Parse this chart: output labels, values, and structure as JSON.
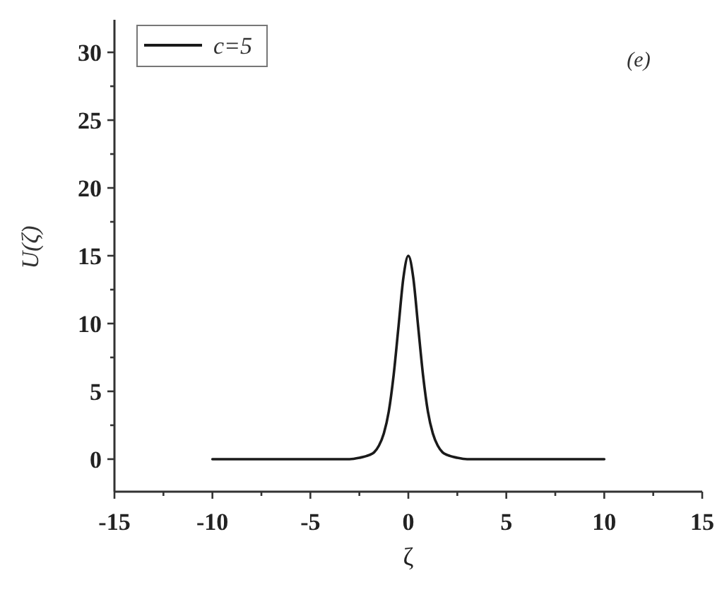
{
  "chart_data": {
    "type": "line",
    "xlabel": "ζ",
    "ylabel": "U(ζ)",
    "annotations": [
      "(e)"
    ],
    "legend": "top left",
    "xlim": [
      -15,
      15
    ],
    "ylim": [
      -2.4,
      32.4
    ],
    "xticks": [
      -15,
      {
        "value": -12.5,
        "label": null
      },
      -10,
      {
        "value": -7.5,
        "label": null
      },
      -5,
      {
        "value": -2.5,
        "label": null
      },
      0,
      {
        "value": 2.5,
        "label": null
      },
      5,
      {
        "value": 7.5,
        "label": null
      },
      10,
      {
        "value": 12.5,
        "label": null
      },
      15
    ],
    "yticks": [
      0,
      {
        "value": 2.5,
        "label": null
      },
      5,
      {
        "value": 7.5,
        "label": null
      },
      10,
      {
        "value": 12.5,
        "label": null
      },
      15,
      {
        "value": 17.5,
        "label": null
      },
      20,
      {
        "value": 22.5,
        "label": null
      },
      25,
      {
        "value": 27.5,
        "label": null
      },
      30
    ],
    "x": [
      -10,
      -4,
      -3,
      -2.5,
      -2,
      -1.75,
      -1.5,
      -1.25,
      -1,
      -0.75,
      -0.5,
      -0.25,
      0,
      0.25,
      0.5,
      0.75,
      1,
      1.25,
      1.5,
      1.75,
      2,
      2.5,
      3,
      4,
      10
    ],
    "series": [
      {
        "name": "c=5",
        "color": "#1a1a1a",
        "values": [
          0,
          0,
          0,
          0.1,
          0.3,
          0.5,
          1.0,
          1.9,
          3.5,
          6.2,
          9.8,
          13.4,
          15,
          13.4,
          9.8,
          6.2,
          3.5,
          1.9,
          1.0,
          0.5,
          0.3,
          0.1,
          0,
          0,
          0
        ]
      }
    ]
  }
}
